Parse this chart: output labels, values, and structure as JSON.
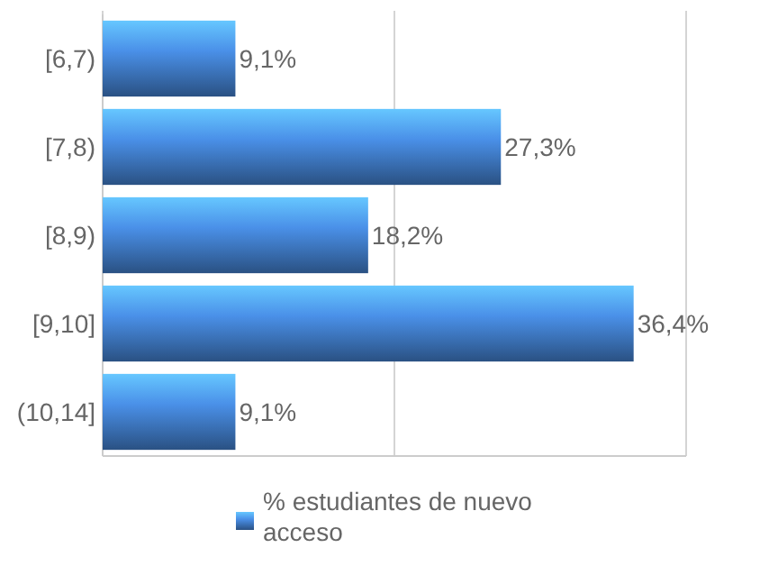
{
  "chart_data": {
    "type": "bar",
    "orientation": "horizontal",
    "categories": [
      "[6,7)",
      "[7,8)",
      "[8,9)",
      "[9,10]",
      "(10,14]"
    ],
    "series": [
      {
        "name": "% estudiantes de nuevo acceso",
        "color": "#4a90e8",
        "values": [
          9.1,
          27.3,
          18.2,
          36.4,
          9.1
        ],
        "value_labels": [
          "9,1%",
          "27,3%",
          "18,2%",
          "36,4%",
          "9,1%"
        ]
      }
    ],
    "xlim": [
      0,
      40
    ],
    "xticks": [
      {
        "value": 0,
        "label": null
      },
      {
        "value": 20,
        "label": null
      },
      {
        "value": 40,
        "label": null
      }
    ],
    "tick_labels": "y",
    "grid": "x",
    "legend": "bottom"
  }
}
